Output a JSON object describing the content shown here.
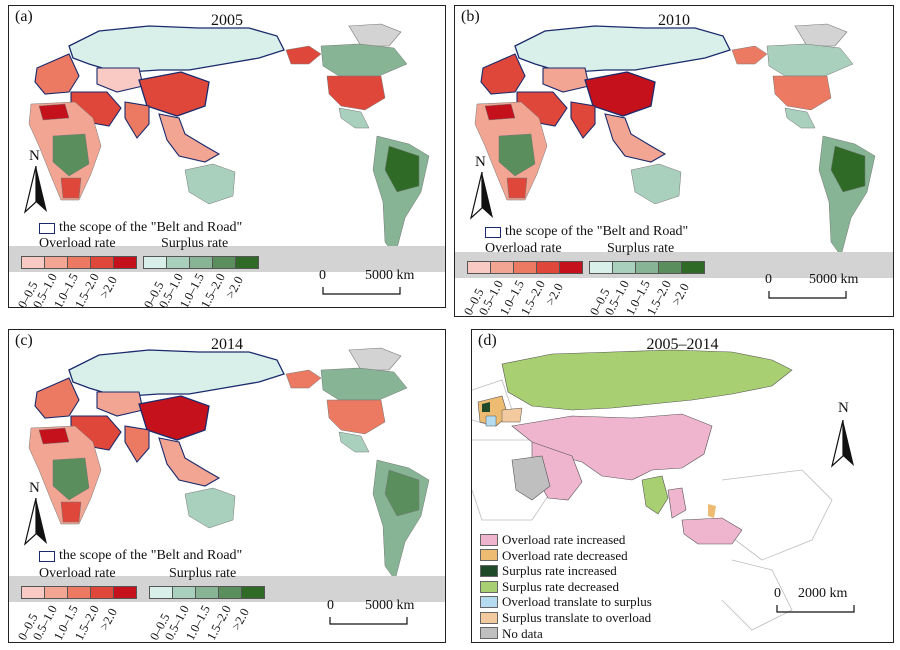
{
  "colors": {
    "overload": [
      "#f9c9c4",
      "#f2a593",
      "#ec7a62",
      "#e0473b",
      "#c4111c"
    ],
    "surplus": [
      "#d9efe9",
      "#a9cfbd",
      "#86b494",
      "#5a8e5c",
      "#2f6b26"
    ],
    "nodata": "#d3d3d3",
    "scope_outline": "#1a2a6c",
    "change": {
      "overload_increased": "#efb5cf",
      "overload_decreased": "#eebb72",
      "surplus_increased": "#1f4a2a",
      "surplus_decreased": "#a9cf73",
      "overload_to_surplus": "#b5dbf0",
      "surplus_to_overload": "#f3c9a0",
      "no_data": "#bfbfbf"
    }
  },
  "panels": [
    {
      "label": "(a)",
      "year": "2005"
    },
    {
      "label": "(b)",
      "year": "2010"
    },
    {
      "label": "(c)",
      "year": "2014"
    },
    {
      "label": "(d)",
      "year": "2005–2014"
    }
  ],
  "north": "N",
  "scope_text": "the scope of the \"Belt and Road\"",
  "overload_title": "Overload rate",
  "surplus_title": "Surplus rate",
  "ramp_ticks": [
    "0–0.5",
    "0.5–1.0",
    "1.0–1.5",
    "1.5–2.0",
    ">2.0"
  ],
  "scale_main": {
    "zero": "0",
    "value": "5000 km"
  },
  "scale_d": {
    "zero": "0",
    "value": "2000 km"
  },
  "change_legend": [
    {
      "key": "overload_increased",
      "label": "Overload rate increased"
    },
    {
      "key": "overload_decreased",
      "label": "Overload rate decreased"
    },
    {
      "key": "surplus_increased",
      "label": "Surplus rate increased"
    },
    {
      "key": "surplus_decreased",
      "label": "Surplus rate decreased"
    },
    {
      "key": "overload_to_surplus",
      "label": "Overload translate to surplus"
    },
    {
      "key": "surplus_to_overload",
      "label": "Surplus translate to overload"
    },
    {
      "key": "no_data",
      "label": "No data"
    }
  ]
}
